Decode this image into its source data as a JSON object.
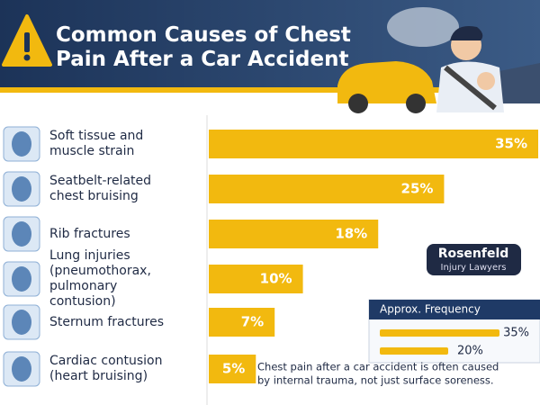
{
  "chart_data": {
    "type": "bar",
    "orientation": "horizontal",
    "title": "Common Causes of Chest Pain After a Car Accident",
    "categories": [
      "Soft tissue and muscle strain",
      "Seatbelt-related chest bruising",
      "Rib fractures",
      "Lung injuries (pneumothorax, pulmonary contusion)",
      "Sternum fractures",
      "Cardiac contusion (heart bruising)"
    ],
    "values": [
      35,
      25,
      18,
      10,
      7,
      5
    ],
    "value_labels": [
      "35%",
      "25%",
      "18%",
      "10%",
      "7%",
      "5%"
    ],
    "color": "#f2b90f",
    "xlim": [
      0,
      35
    ],
    "legend": {
      "title": "Approx. Frequency",
      "entries": [
        {
          "value": 35,
          "label": "35%"
        },
        {
          "value": 20,
          "label": "20%"
        }
      ]
    },
    "brand": {
      "name": "Rosenfeld",
      "tagline": "Injury Lawyers"
    },
    "note": [
      "Chest pain after a car accident is often caused",
      "by internal trauma, not just surface soreness."
    ]
  }
}
